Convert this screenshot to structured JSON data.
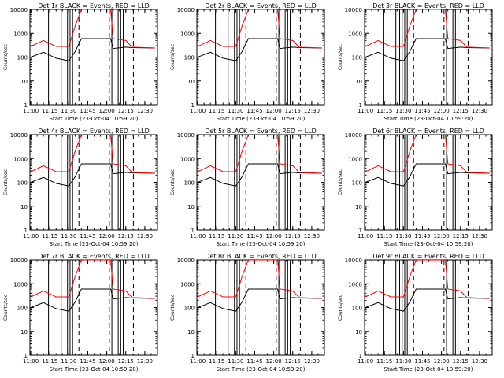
{
  "chart_data": [
    {
      "type": "line",
      "title": "Det 1r BLACK = Events, RED = LLD",
      "xlabel": "Start Time (23-Oct-04 10:59:20)",
      "ylabel": "Counts/sec",
      "ylim": [
        1,
        10000
      ],
      "yscale": "log",
      "xlim": [
        "10:59:20",
        "12:40:00"
      ],
      "x_ticks": [
        "11:00",
        "11:15",
        "11:30",
        "11:45",
        "12:00",
        "12:15",
        "12:30"
      ],
      "y_ticks": [
        "1",
        "10",
        "100",
        "1000",
        "10000"
      ],
      "series": [
        {
          "name": "Events",
          "color": "#000000",
          "x": [
            "11:00",
            "11:10",
            "11:20",
            "11:30",
            "11:35",
            "11:40",
            "12:03",
            "12:05",
            "12:15",
            "12:20",
            "12:38"
          ],
          "values": [
            100,
            160,
            90,
            70,
            170,
            600,
            600,
            230,
            260,
            250,
            240
          ]
        },
        {
          "name": "LLD",
          "color": "#ff0000",
          "x": [
            "11:00",
            "11:10",
            "11:20",
            "11:30",
            "11:35",
            "11:40",
            "12:03",
            "12:05",
            "12:15",
            "12:20",
            "12:38"
          ],
          "values": [
            280,
            500,
            280,
            280,
            2000,
            10000,
            10000,
            600,
            500,
            260,
            240
          ]
        }
      ],
      "vlines_solid": [
        "11:14",
        "11:24",
        "11:27",
        "11:29",
        "11:31",
        "11:33",
        "12:04",
        "12:09",
        "12:11",
        "12:13"
      ],
      "vlines_dashed": [
        "11:38",
        "12:02",
        "12:21"
      ]
    },
    {
      "type": "line",
      "title": "Det 2r BLACK = Events, RED = LLD",
      "xlabel": "Start Time (23-Oct-04 10:59:20)",
      "ylabel": "Counts/sec",
      "ylim": [
        1,
        10000
      ],
      "yscale": "log",
      "xlim": [
        "10:59:20",
        "12:40:00"
      ],
      "x_ticks": [
        "11:00",
        "11:15",
        "11:30",
        "11:45",
        "12:00",
        "12:15",
        "12:30"
      ],
      "y_ticks": [
        "1",
        "10",
        "100",
        "1000",
        "10000"
      ],
      "series": [
        {
          "name": "Events",
          "color": "#000000",
          "x": [
            "11:00",
            "11:10",
            "11:20",
            "11:30",
            "11:35",
            "11:40",
            "12:03",
            "12:05",
            "12:15",
            "12:20",
            "12:38"
          ],
          "values": [
            100,
            160,
            90,
            70,
            170,
            600,
            600,
            230,
            260,
            250,
            240
          ]
        },
        {
          "name": "LLD",
          "color": "#ff0000",
          "x": [
            "11:00",
            "11:10",
            "11:20",
            "11:30",
            "11:35",
            "11:40",
            "12:03",
            "12:05",
            "12:15",
            "12:20",
            "12:38"
          ],
          "values": [
            280,
            500,
            280,
            280,
            2000,
            10000,
            10000,
            600,
            500,
            260,
            240
          ]
        }
      ],
      "vlines_solid": [
        "11:14",
        "11:24",
        "11:27",
        "11:29",
        "11:31",
        "11:33",
        "12:04",
        "12:09",
        "12:11",
        "12:13"
      ],
      "vlines_dashed": [
        "11:38",
        "12:02",
        "12:21"
      ]
    },
    {
      "type": "line",
      "title": "Det 3r BLACK = Events, RED = LLD",
      "xlabel": "Start Time (23-Oct-04 10:59:20)",
      "ylabel": "Counts/sec",
      "ylim": [
        1,
        10000
      ],
      "yscale": "log",
      "xlim": [
        "10:59:20",
        "12:40:00"
      ],
      "x_ticks": [
        "11:00",
        "11:15",
        "11:30",
        "11:45",
        "12:00",
        "12:15",
        "12:30"
      ],
      "y_ticks": [
        "1",
        "10",
        "100",
        "1000",
        "10000"
      ],
      "series": [
        {
          "name": "Events",
          "color": "#000000",
          "x": [
            "11:00",
            "11:10",
            "11:20",
            "11:30",
            "11:35",
            "11:40",
            "12:03",
            "12:05",
            "12:15",
            "12:20",
            "12:38"
          ],
          "values": [
            100,
            160,
            90,
            70,
            170,
            600,
            600,
            230,
            260,
            250,
            240
          ]
        },
        {
          "name": "LLD",
          "color": "#ff0000",
          "x": [
            "11:00",
            "11:10",
            "11:20",
            "11:30",
            "11:35",
            "11:40",
            "12:03",
            "12:05",
            "12:15",
            "12:20",
            "12:38"
          ],
          "values": [
            280,
            500,
            280,
            280,
            2000,
            10000,
            10000,
            600,
            500,
            260,
            240
          ]
        }
      ],
      "vlines_solid": [
        "11:14",
        "11:24",
        "11:27",
        "11:29",
        "11:31",
        "11:33",
        "12:04",
        "12:09",
        "12:11",
        "12:13"
      ],
      "vlines_dashed": [
        "11:38",
        "12:02",
        "12:21"
      ]
    },
    {
      "type": "line",
      "title": "Det 4r BLACK = Events, RED = LLD",
      "xlabel": "Start Time (23-Oct-04 10:59:20)",
      "ylabel": "Counts/sec",
      "ylim": [
        1,
        10000
      ],
      "yscale": "log",
      "xlim": [
        "10:59:20",
        "12:40:00"
      ],
      "x_ticks": [
        "11:00",
        "11:15",
        "11:30",
        "11:45",
        "12:00",
        "12:15",
        "12:30"
      ],
      "y_ticks": [
        "1",
        "10",
        "100",
        "1000",
        "10000"
      ],
      "series": [
        {
          "name": "Events",
          "color": "#000000",
          "x": [
            "11:00",
            "11:10",
            "11:20",
            "11:30",
            "11:35",
            "11:40",
            "12:03",
            "12:05",
            "12:15",
            "12:20",
            "12:38"
          ],
          "values": [
            100,
            160,
            90,
            70,
            170,
            600,
            600,
            230,
            260,
            250,
            240
          ]
        },
        {
          "name": "LLD",
          "color": "#ff0000",
          "x": [
            "11:00",
            "11:10",
            "11:20",
            "11:30",
            "11:35",
            "11:40",
            "12:03",
            "12:05",
            "12:15",
            "12:20",
            "12:38"
          ],
          "values": [
            280,
            500,
            280,
            280,
            2000,
            10000,
            10000,
            600,
            500,
            260,
            240
          ]
        }
      ],
      "vlines_solid": [
        "11:14",
        "11:24",
        "11:27",
        "11:29",
        "11:31",
        "11:33",
        "12:04",
        "12:09",
        "12:11",
        "12:13"
      ],
      "vlines_dashed": [
        "11:38",
        "12:02",
        "12:21"
      ]
    },
    {
      "type": "line",
      "title": "Det 5r BLACK = Events, RED = LLD",
      "xlabel": "Start Time (23-Oct-04 10:59:20)",
      "ylabel": "Counts/sec",
      "ylim": [
        1,
        10000
      ],
      "yscale": "log",
      "xlim": [
        "10:59:20",
        "12:40:00"
      ],
      "x_ticks": [
        "11:00",
        "11:15",
        "11:30",
        "11:45",
        "12:00",
        "12:15",
        "12:30"
      ],
      "y_ticks": [
        "1",
        "10",
        "100",
        "1000",
        "10000"
      ],
      "series": [
        {
          "name": "Events",
          "color": "#000000",
          "x": [
            "11:00",
            "11:10",
            "11:20",
            "11:30",
            "11:35",
            "11:40",
            "12:03",
            "12:05",
            "12:15",
            "12:20",
            "12:38"
          ],
          "values": [
            100,
            160,
            90,
            70,
            170,
            600,
            600,
            230,
            260,
            250,
            240
          ]
        },
        {
          "name": "LLD",
          "color": "#ff0000",
          "x": [
            "11:00",
            "11:10",
            "11:20",
            "11:30",
            "11:35",
            "11:40",
            "12:03",
            "12:05",
            "12:15",
            "12:20",
            "12:38"
          ],
          "values": [
            280,
            500,
            280,
            280,
            2000,
            10000,
            10000,
            600,
            500,
            260,
            240
          ]
        }
      ],
      "vlines_solid": [
        "11:14",
        "11:24",
        "11:27",
        "11:29",
        "11:31",
        "11:33",
        "12:04",
        "12:09",
        "12:11",
        "12:13"
      ],
      "vlines_dashed": [
        "11:38",
        "12:02",
        "12:21"
      ]
    },
    {
      "type": "line",
      "title": "Det 6r BLACK = Events, RED = LLD",
      "xlabel": "Start Time (23-Oct-04 10:59:20)",
      "ylabel": "Counts/sec",
      "ylim": [
        1,
        10000
      ],
      "yscale": "log",
      "xlim": [
        "10:59:20",
        "12:40:00"
      ],
      "x_ticks": [
        "11:00",
        "11:15",
        "11:30",
        "11:45",
        "12:00",
        "12:15",
        "12:30"
      ],
      "y_ticks": [
        "1",
        "10",
        "100",
        "1000",
        "10000"
      ],
      "series": [
        {
          "name": "Events",
          "color": "#000000",
          "x": [
            "11:00",
            "11:10",
            "11:20",
            "11:30",
            "11:35",
            "11:40",
            "12:03",
            "12:05",
            "12:15",
            "12:20",
            "12:38"
          ],
          "values": [
            100,
            160,
            90,
            70,
            170,
            600,
            600,
            230,
            260,
            250,
            240
          ]
        },
        {
          "name": "LLD",
          "color": "#ff0000",
          "x": [
            "11:00",
            "11:10",
            "11:20",
            "11:30",
            "11:35",
            "11:40",
            "12:03",
            "12:05",
            "12:15",
            "12:20",
            "12:38"
          ],
          "values": [
            280,
            500,
            280,
            280,
            2000,
            10000,
            10000,
            600,
            500,
            260,
            240
          ]
        }
      ],
      "vlines_solid": [
        "11:14",
        "11:24",
        "11:27",
        "11:29",
        "11:31",
        "11:33",
        "12:04",
        "12:09",
        "12:11",
        "12:13"
      ],
      "vlines_dashed": [
        "11:38",
        "12:02",
        "12:21"
      ]
    },
    {
      "type": "line",
      "title": "Det 7r BLACK = Events, RED = LLD",
      "xlabel": "Start Time (23-Oct-04 10:59:20)",
      "ylabel": "Counts/sec",
      "ylim": [
        1,
        10000
      ],
      "yscale": "log",
      "xlim": [
        "10:59:20",
        "12:40:00"
      ],
      "x_ticks": [
        "11:00",
        "11:15",
        "11:30",
        "11:45",
        "12:00",
        "12:15",
        "12:30"
      ],
      "y_ticks": [
        "1",
        "10",
        "100",
        "1000",
        "10000"
      ],
      "series": [
        {
          "name": "Events",
          "color": "#000000",
          "x": [
            "11:00",
            "11:10",
            "11:20",
            "11:30",
            "11:35",
            "11:40",
            "12:03",
            "12:05",
            "12:15",
            "12:20",
            "12:38"
          ],
          "values": [
            100,
            160,
            90,
            70,
            170,
            600,
            600,
            230,
            260,
            250,
            240
          ]
        },
        {
          "name": "LLD",
          "color": "#ff0000",
          "x": [
            "11:00",
            "11:10",
            "11:20",
            "11:30",
            "11:35",
            "11:40",
            "12:03",
            "12:05",
            "12:15",
            "12:20",
            "12:38"
          ],
          "values": [
            280,
            500,
            280,
            280,
            2000,
            10000,
            10000,
            600,
            500,
            260,
            240
          ]
        }
      ],
      "vlines_solid": [
        "11:14",
        "11:24",
        "11:27",
        "11:29",
        "11:31",
        "11:33",
        "12:04",
        "12:09",
        "12:11",
        "12:13"
      ],
      "vlines_dashed": [
        "11:38",
        "12:02",
        "12:21"
      ]
    },
    {
      "type": "line",
      "title": "Det 8r BLACK = Events, RED = LLD",
      "xlabel": "Start Time (23-Oct-04 10:59:20)",
      "ylabel": "Counts/sec",
      "ylim": [
        1,
        10000
      ],
      "yscale": "log",
      "xlim": [
        "10:59:20",
        "12:40:00"
      ],
      "x_ticks": [
        "11:00",
        "11:15",
        "11:30",
        "11:45",
        "12:00",
        "12:15",
        "12:30"
      ],
      "y_ticks": [
        "1",
        "10",
        "100",
        "1000",
        "10000"
      ],
      "series": [
        {
          "name": "Events",
          "color": "#000000",
          "x": [
            "11:00",
            "11:10",
            "11:20",
            "11:30",
            "11:35",
            "11:40",
            "12:03",
            "12:05",
            "12:15",
            "12:20",
            "12:38"
          ],
          "values": [
            100,
            160,
            90,
            70,
            170,
            600,
            600,
            230,
            260,
            250,
            240
          ]
        },
        {
          "name": "LLD",
          "color": "#ff0000",
          "x": [
            "11:00",
            "11:10",
            "11:20",
            "11:30",
            "11:35",
            "11:40",
            "12:03",
            "12:05",
            "12:15",
            "12:20",
            "12:38"
          ],
          "values": [
            280,
            500,
            280,
            280,
            2000,
            10000,
            10000,
            600,
            500,
            260,
            240
          ]
        }
      ],
      "vlines_solid": [
        "11:14",
        "11:24",
        "11:27",
        "11:29",
        "11:31",
        "11:33",
        "12:04",
        "12:09",
        "12:11",
        "12:13"
      ],
      "vlines_dashed": [
        "11:38",
        "12:02",
        "12:21"
      ]
    },
    {
      "type": "line",
      "title": "Det 9r BLACK = Events, RED = LLD",
      "xlabel": "Start Time (23-Oct-04 10:59:20)",
      "ylabel": "Counts/sec",
      "ylim": [
        1,
        10000
      ],
      "yscale": "log",
      "xlim": [
        "10:59:20",
        "12:40:00"
      ],
      "x_ticks": [
        "11:00",
        "11:15",
        "11:30",
        "11:45",
        "12:00",
        "12:15",
        "12:30"
      ],
      "y_ticks": [
        "1",
        "10",
        "100",
        "1000",
        "10000"
      ],
      "series": [
        {
          "name": "Events",
          "color": "#000000",
          "x": [
            "11:00",
            "11:10",
            "11:20",
            "11:30",
            "11:35",
            "11:40",
            "12:03",
            "12:05",
            "12:15",
            "12:20",
            "12:38"
          ],
          "values": [
            100,
            160,
            90,
            70,
            170,
            600,
            600,
            230,
            260,
            250,
            240
          ]
        },
        {
          "name": "LLD",
          "color": "#ff0000",
          "x": [
            "11:00",
            "11:10",
            "11:20",
            "11:30",
            "11:35",
            "11:40",
            "12:03",
            "12:05",
            "12:15",
            "12:20",
            "12:38"
          ],
          "values": [
            280,
            500,
            280,
            280,
            2000,
            10000,
            10000,
            600,
            500,
            260,
            240
          ]
        }
      ],
      "vlines_solid": [
        "11:14",
        "11:24",
        "11:27",
        "11:29",
        "11:31",
        "11:33",
        "12:04",
        "12:09",
        "12:11",
        "12:13"
      ],
      "vlines_dashed": [
        "11:38",
        "12:02",
        "12:21"
      ]
    }
  ]
}
